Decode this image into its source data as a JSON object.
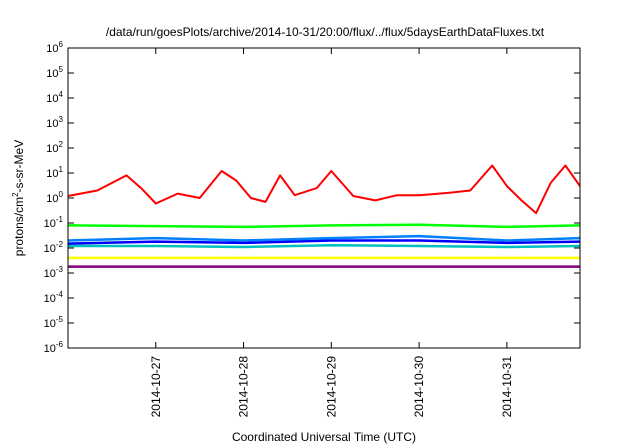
{
  "chart_data": {
    "type": "line",
    "title": "/data/run/goesPlots/archive/2014-10-31/20:00/flux/../flux/5daysEarthDataFluxes.txt",
    "xlabel": "Coordinated Universal Time (UTC)",
    "ylabel": {
      "base": "protons/cm",
      "sup": "2",
      "rest": "-s-sr-MeV"
    },
    "y_scale": "log",
    "ylim": [
      1e-06,
      1000000.0
    ],
    "y_ticks": [
      {
        "exp": -6
      },
      {
        "exp": -5
      },
      {
        "exp": -4
      },
      {
        "exp": -3
      },
      {
        "exp": -2
      },
      {
        "exp": -1
      },
      {
        "exp": 0
      },
      {
        "exp": 1
      },
      {
        "exp": 2
      },
      {
        "exp": 3
      },
      {
        "exp": 4
      },
      {
        "exp": 5
      },
      {
        "exp": 6
      }
    ],
    "tick_base": "10",
    "xlim": [
      "2014-10-26 00:00",
      "2014-10-31 20:00"
    ],
    "x_ticks": [
      "2014-10-27",
      "2014-10-28",
      "2014-10-29",
      "2014-10-30",
      "2014-10-31"
    ],
    "grid": false,
    "legend": "none",
    "series": [
      {
        "color": "#ff0000",
        "x": [
          "2014-10-26 00:00",
          "2014-10-26 08:00",
          "2014-10-26 16:00",
          "2014-10-26 20:00",
          "2014-10-27 00:00",
          "2014-10-27 06:00",
          "2014-10-27 12:00",
          "2014-10-27 18:00",
          "2014-10-27 22:00",
          "2014-10-28 02:00",
          "2014-10-28 06:00",
          "2014-10-28 10:00",
          "2014-10-28 14:00",
          "2014-10-28 20:00",
          "2014-10-29 00:00",
          "2014-10-29 06:00",
          "2014-10-29 12:00",
          "2014-10-29 18:00",
          "2014-10-30 00:00",
          "2014-10-30 08:00",
          "2014-10-30 14:00",
          "2014-10-30 20:00",
          "2014-10-31 00:00",
          "2014-10-31 04:00",
          "2014-10-31 08:00",
          "2014-10-31 12:00",
          "2014-10-31 16:00",
          "2014-10-31 20:00"
        ],
        "y": [
          1.2,
          2.0,
          8.0,
          2.5,
          0.6,
          1.5,
          1.0,
          12,
          5,
          1.0,
          0.7,
          8,
          1.3,
          2.5,
          12,
          1.2,
          0.8,
          1.3,
          1.3,
          1.6,
          2.0,
          20,
          3.0,
          0.8,
          0.25,
          4,
          20,
          3
        ]
      },
      {
        "color": "#00ff00",
        "x": [
          "2014-10-26 00:00",
          "2014-10-27 00:00",
          "2014-10-28 00:00",
          "2014-10-29 00:00",
          "2014-10-30 00:00",
          "2014-10-31 00:00",
          "2014-10-31 20:00"
        ],
        "y": [
          0.08,
          0.075,
          0.07,
          0.08,
          0.085,
          0.07,
          0.08
        ]
      },
      {
        "color": "#0080ff",
        "x": [
          "2014-10-26 00:00",
          "2014-10-27 00:00",
          "2014-10-28 00:00",
          "2014-10-29 00:00",
          "2014-10-30 00:00",
          "2014-10-31 00:00",
          "2014-10-31 20:00"
        ],
        "y": [
          0.02,
          0.025,
          0.02,
          0.025,
          0.03,
          0.02,
          0.025
        ]
      },
      {
        "color": "#0000ff",
        "x": [
          "2014-10-26 00:00",
          "2014-10-27 00:00",
          "2014-10-28 00:00",
          "2014-10-29 00:00",
          "2014-10-30 00:00",
          "2014-10-31 00:00",
          "2014-10-31 20:00"
        ],
        "y": [
          0.015,
          0.018,
          0.016,
          0.02,
          0.02,
          0.016,
          0.018
        ]
      },
      {
        "color": "#00c0c0",
        "x": [
          "2014-10-26 00:00",
          "2014-10-27 00:00",
          "2014-10-28 00:00",
          "2014-10-29 00:00",
          "2014-10-30 00:00",
          "2014-10-31 00:00",
          "2014-10-31 20:00"
        ],
        "y": [
          0.012,
          0.012,
          0.011,
          0.013,
          0.012,
          0.011,
          0.012
        ]
      },
      {
        "color": "#ffff00",
        "x": [
          "2014-10-26 00:00",
          "2014-10-27 00:00",
          "2014-10-28 00:00",
          "2014-10-29 00:00",
          "2014-10-30 00:00",
          "2014-10-31 00:00",
          "2014-10-31 20:00"
        ],
        "y": [
          0.004,
          0.004,
          0.004,
          0.004,
          0.004,
          0.004,
          0.004
        ]
      },
      {
        "color": "#800080",
        "x": [
          "2014-10-26 00:00",
          "2014-10-27 00:00",
          "2014-10-28 00:00",
          "2014-10-29 00:00",
          "2014-10-30 00:00",
          "2014-10-31 00:00",
          "2014-10-31 20:00"
        ],
        "y": [
          0.0018,
          0.0018,
          0.0018,
          0.0018,
          0.0018,
          0.0018,
          0.0018
        ]
      }
    ]
  }
}
